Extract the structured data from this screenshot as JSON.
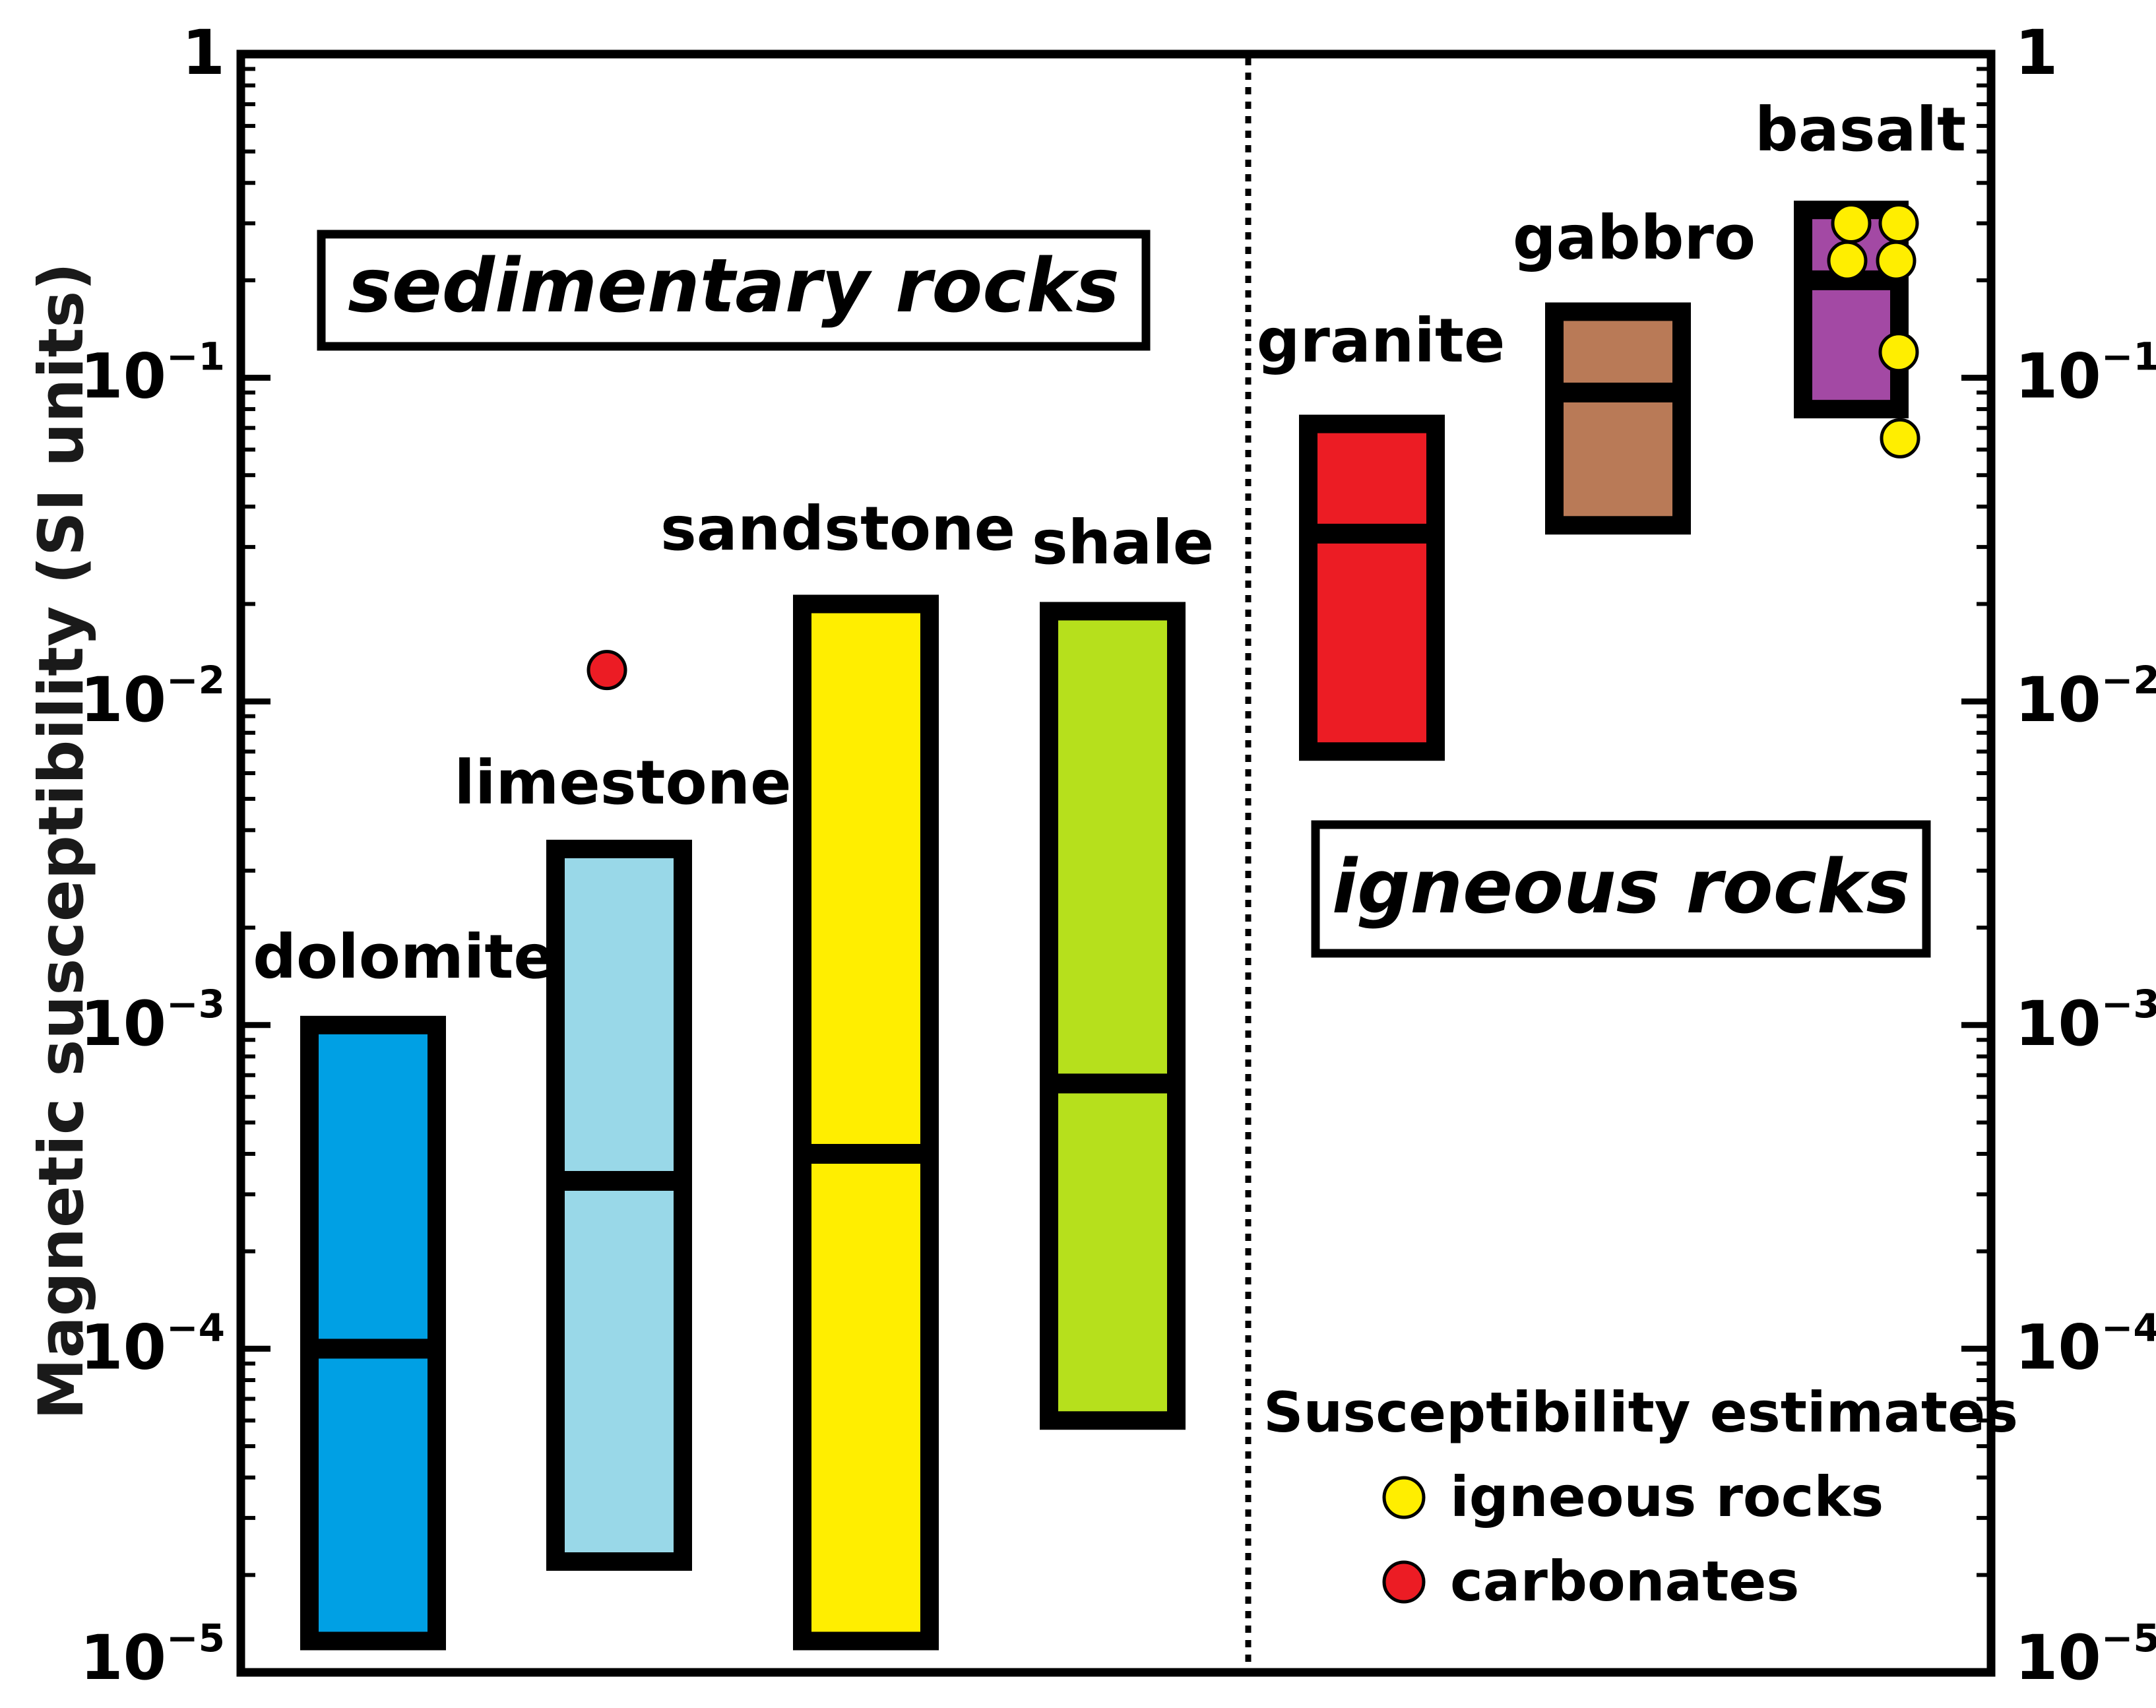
{
  "chart_data": {
    "type": "range-box",
    "ylabel": "Magnetic susceptibility (SI units)",
    "scale": "log",
    "ylim": [
      1e-05,
      1
    ],
    "y_ticks": [
      {
        "value": 1,
        "base": "1",
        "exp": ""
      },
      {
        "value": 0.1,
        "base": "10",
        "exp": "−1"
      },
      {
        "value": 0.01,
        "base": "10",
        "exp": "−2"
      },
      {
        "value": 0.001,
        "base": "10",
        "exp": "−3"
      },
      {
        "value": 0.0001,
        "base": "10",
        "exp": "−4"
      },
      {
        "value": 1e-05,
        "base": "10",
        "exp": "−5"
      }
    ],
    "groups": [
      {
        "label": "sedimentary rocks"
      },
      {
        "label": "igneous rocks"
      }
    ],
    "rocks": [
      {
        "name": "dolomite",
        "group": "sedimentary",
        "min": 1.25e-05,
        "max": 0.001,
        "median": 0.0001,
        "color": "#00a0e4"
      },
      {
        "name": "limestone",
        "group": "sedimentary",
        "min": 2.2e-05,
        "max": 0.0035,
        "median": 0.00033,
        "color": "#99d8e8"
      },
      {
        "name": "sandstone",
        "group": "sedimentary",
        "min": 1.25e-05,
        "max": 0.02,
        "median": 0.0004,
        "color": "#ffee00"
      },
      {
        "name": "shale",
        "group": "sedimentary",
        "min": 6e-05,
        "max": 0.019,
        "median": 0.00066,
        "color": "#b6e01c"
      },
      {
        "name": "granite",
        "group": "igneous",
        "min": 0.007,
        "max": 0.072,
        "median": 0.033,
        "color": "#ec1c24"
      },
      {
        "name": "gabbro",
        "group": "igneous",
        "min": 0.035,
        "max": 0.16,
        "median": 0.09,
        "color": "#b97a57"
      },
      {
        "name": "basalt",
        "group": "igneous",
        "min": 0.08,
        "max": 0.33,
        "median": 0.2,
        "color": "#a349a4"
      }
    ],
    "estimates": [
      {
        "series": "carbonates",
        "rock": "limestone",
        "y": 0.0125
      },
      {
        "series": "igneous rocks",
        "rock": "basalt",
        "y": 0.3
      },
      {
        "series": "igneous rocks",
        "rock": "basalt",
        "y": 0.3
      },
      {
        "series": "igneous rocks",
        "rock": "basalt",
        "y": 0.23
      },
      {
        "series": "igneous rocks",
        "rock": "basalt",
        "y": 0.23
      },
      {
        "series": "igneous rocks",
        "rock": "basalt",
        "y": 0.12
      },
      {
        "series": "igneous rocks",
        "rock": "basalt",
        "y": 0.065
      }
    ],
    "legend": {
      "title": "Susceptibility estimates",
      "position": "bottom-right",
      "items": [
        {
          "label": "igneous rocks",
          "color": "#ffee00"
        },
        {
          "label": "carbonates",
          "color": "#ec1c24"
        }
      ]
    },
    "divider": "dotted vertical line between sedimentary and igneous rocks"
  }
}
